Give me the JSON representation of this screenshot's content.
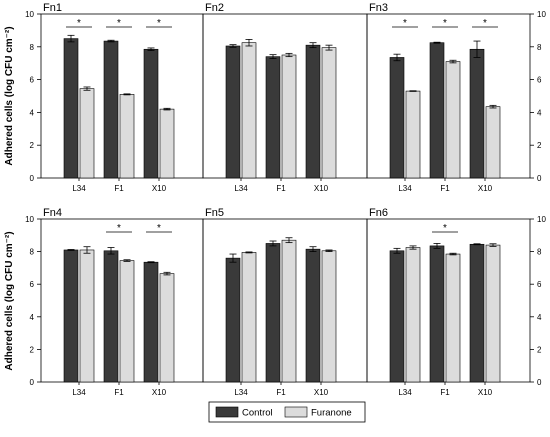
{
  "chart_data": {
    "type": "bar",
    "ylabel": "Adhered cells (log CFU cm⁻²)",
    "ylim": [
      0,
      10
    ],
    "yticks": [
      0,
      2,
      4,
      6,
      8,
      10
    ],
    "categories": [
      "L34",
      "F1",
      "X10"
    ],
    "legend": {
      "position": "bottom-center",
      "entries": [
        {
          "name": "Control",
          "color": "#3a3a3a"
        },
        {
          "name": "Furanone",
          "color": "#dcdcdc"
        }
      ]
    },
    "significance_marker": "*",
    "panels": [
      {
        "title": "Fn1",
        "control": [
          8.5,
          8.35,
          7.85
        ],
        "furanone": [
          5.45,
          5.1,
          4.2
        ],
        "control_err": [
          0.2,
          0.05,
          0.08
        ],
        "furanone_err": [
          0.1,
          0.03,
          0.05
        ],
        "significant": [
          true,
          true,
          true
        ]
      },
      {
        "title": "Fn2",
        "control": [
          8.05,
          7.4,
          8.1
        ],
        "furanone": [
          8.25,
          7.5,
          7.95
        ],
        "control_err": [
          0.08,
          0.12,
          0.15
        ],
        "furanone_err": [
          0.2,
          0.1,
          0.15
        ],
        "significant": [
          false,
          false,
          false
        ]
      },
      {
        "title": "Fn3",
        "control": [
          7.35,
          8.25,
          7.85
        ],
        "furanone": [
          5.3,
          7.1,
          4.35
        ],
        "control_err": [
          0.2,
          0.03,
          0.5
        ],
        "furanone_err": [
          0.02,
          0.08,
          0.08
        ],
        "significant": [
          true,
          true,
          true
        ]
      },
      {
        "title": "Fn4",
        "control": [
          8.1,
          8.05,
          7.35
        ],
        "furanone": [
          8.1,
          7.45,
          6.65
        ],
        "control_err": [
          0.03,
          0.2,
          0.03
        ],
        "furanone_err": [
          0.2,
          0.05,
          0.08
        ],
        "significant": [
          false,
          true,
          true
        ]
      },
      {
        "title": "Fn5",
        "control": [
          7.6,
          8.5,
          8.15
        ],
        "furanone": [
          7.95,
          8.7,
          8.05
        ],
        "control_err": [
          0.25,
          0.15,
          0.15
        ],
        "furanone_err": [
          0.03,
          0.15,
          0.05
        ],
        "significant": [
          false,
          false,
          false
        ]
      },
      {
        "title": "Fn6",
        "control": [
          8.05,
          8.35,
          8.45
        ],
        "furanone": [
          8.25,
          7.85,
          8.4
        ],
        "control_err": [
          0.15,
          0.15,
          0.03
        ],
        "furanone_err": [
          0.1,
          0.05,
          0.08
        ],
        "significant": [
          false,
          true,
          false
        ]
      }
    ]
  }
}
